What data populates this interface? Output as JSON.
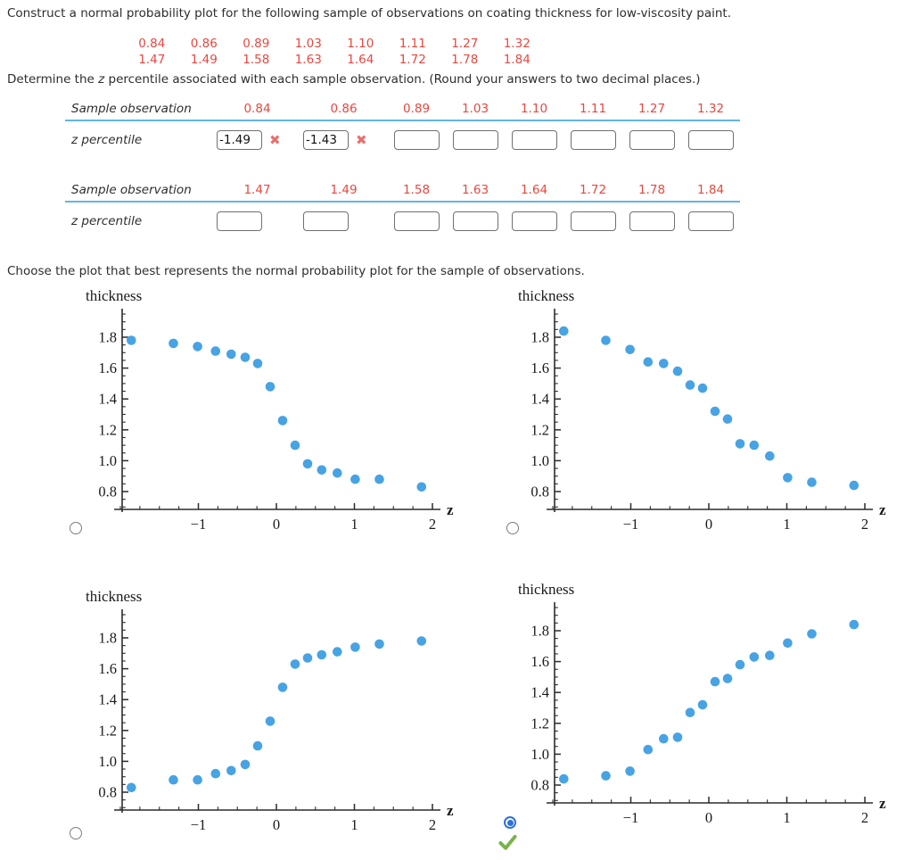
{
  "page": {
    "title_line": "Construct a normal probability plot for the following sample of observations on coating thickness for low-viscosity paint.",
    "determine_parts": [
      "Determine the ",
      "z",
      " percentile associated with each sample observation. (Round your answers to two decimal places.)"
    ],
    "choose_line": "Choose the plot that best represents the normal probability plot for the sample of observations."
  },
  "sample_values": [
    [
      "0.84",
      "0.86",
      "0.89",
      "1.03",
      "1.10",
      "1.11",
      "1.27",
      "1.32"
    ],
    [
      "1.47",
      "1.49",
      "1.58",
      "1.63",
      "1.64",
      "1.72",
      "1.78",
      "1.84"
    ]
  ],
  "tables": [
    {
      "row1_label": "Sample observation",
      "row2_label": "z percentile",
      "values": [
        "0.84",
        "0.86",
        "0.89",
        "1.03",
        "1.10",
        "1.11",
        "1.27",
        "1.32"
      ],
      "inputs": [
        {
          "value": "-1.49",
          "status": "incorrect"
        },
        {
          "value": "-1.43",
          "status": "incorrect"
        },
        {
          "value": "",
          "status": "empty"
        },
        {
          "value": "",
          "status": "empty"
        },
        {
          "value": "",
          "status": "empty"
        },
        {
          "value": "",
          "status": "empty"
        },
        {
          "value": "",
          "status": "empty"
        },
        {
          "value": "",
          "status": "empty"
        }
      ]
    },
    {
      "row1_label": "Sample observation",
      "row2_label": "z percentile",
      "values": [
        "1.47",
        "1.49",
        "1.58",
        "1.63",
        "1.64",
        "1.72",
        "1.78",
        "1.84"
      ],
      "inputs": [
        {
          "value": "",
          "status": "empty"
        },
        {
          "value": "",
          "status": "empty"
        },
        {
          "value": "",
          "status": "empty"
        },
        {
          "value": "",
          "status": "empty"
        },
        {
          "value": "",
          "status": "empty"
        },
        {
          "value": "",
          "status": "empty"
        },
        {
          "value": "",
          "status": "empty"
        },
        {
          "value": "",
          "status": "empty"
        }
      ]
    }
  ],
  "icons": {
    "incorrect_mark": "✖",
    "correct_mark": "check"
  },
  "plot_options": [
    {
      "plot": "a",
      "selected": false
    },
    {
      "plot": "b",
      "selected": false
    },
    {
      "plot": "c",
      "selected": false
    },
    {
      "plot": "d",
      "selected": true,
      "marked_correct": true
    }
  ],
  "colors": {
    "red_text": "#e8473f",
    "table_line_blue": "#62b5e6",
    "error_x": "#e87070",
    "point_blue": "#47a3e3",
    "radio_selected_blue": "#2e6fe2",
    "check_green": "#79b34a"
  },
  "chart_data": [
    {
      "type": "scatter",
      "name": "plot-a",
      "description": "decreasing S-shaped pattern",
      "ylabel": "thickness",
      "xlabel": "z",
      "x": [
        -1.86,
        -1.32,
        -1.01,
        -0.78,
        -0.58,
        -0.4,
        -0.24,
        -0.08,
        0.08,
        0.24,
        0.4,
        0.58,
        0.78,
        1.01,
        1.32,
        1.86
      ],
      "y": [
        1.78,
        1.76,
        1.74,
        1.71,
        1.69,
        1.67,
        1.63,
        1.48,
        1.26,
        1.1,
        0.98,
        0.94,
        0.92,
        0.88,
        0.88,
        0.83
      ],
      "x_ticks": [
        -1,
        0,
        1,
        2
      ],
      "y_ticks": [
        0.8,
        1.0,
        1.2,
        1.4,
        1.6,
        1.8
      ],
      "xlim": [
        -2.1,
        2.1
      ],
      "ylim": [
        0.67,
        1.97
      ],
      "grid": false,
      "selected": false
    },
    {
      "type": "scatter",
      "name": "plot-b",
      "description": "decreasing, roughly linear pattern",
      "ylabel": "thickness",
      "xlabel": "z",
      "x": [
        -1.86,
        -1.32,
        -1.01,
        -0.78,
        -0.58,
        -0.4,
        -0.24,
        -0.08,
        0.08,
        0.24,
        0.4,
        0.58,
        0.78,
        1.01,
        1.32,
        1.86
      ],
      "y": [
        1.84,
        1.78,
        1.72,
        1.64,
        1.63,
        1.58,
        1.49,
        1.47,
        1.32,
        1.27,
        1.11,
        1.1,
        1.03,
        0.89,
        0.86,
        0.84
      ],
      "x_ticks": [
        -1,
        0,
        1,
        2
      ],
      "y_ticks": [
        0.8,
        1.0,
        1.2,
        1.4,
        1.6,
        1.8
      ],
      "xlim": [
        -2.1,
        2.1
      ],
      "ylim": [
        0.67,
        1.97
      ],
      "grid": false,
      "selected": false
    },
    {
      "type": "scatter",
      "name": "plot-c",
      "description": "increasing S-shaped pattern",
      "ylabel": "thickness",
      "xlabel": "z",
      "x": [
        -1.86,
        -1.32,
        -1.01,
        -0.78,
        -0.58,
        -0.4,
        -0.24,
        -0.08,
        0.08,
        0.24,
        0.4,
        0.58,
        0.78,
        1.01,
        1.32,
        1.86
      ],
      "y": [
        0.83,
        0.88,
        0.88,
        0.92,
        0.94,
        0.98,
        1.1,
        1.26,
        1.48,
        1.63,
        1.67,
        1.69,
        1.71,
        1.74,
        1.76,
        1.78
      ],
      "x_ticks": [
        -1,
        0,
        1,
        2
      ],
      "y_ticks": [
        0.8,
        1.0,
        1.2,
        1.4,
        1.6,
        1.8
      ],
      "xlim": [
        -2.1,
        2.1
      ],
      "ylim": [
        0.67,
        1.97
      ],
      "grid": false,
      "selected": false
    },
    {
      "type": "scatter",
      "name": "plot-d",
      "description": "increasing, roughly linear pattern (selected answer, marked correct)",
      "ylabel": "thickness",
      "xlabel": "z",
      "x": [
        -1.86,
        -1.32,
        -1.01,
        -0.78,
        -0.58,
        -0.4,
        -0.24,
        -0.08,
        0.08,
        0.24,
        0.4,
        0.58,
        0.78,
        1.01,
        1.32,
        1.86
      ],
      "y": [
        0.84,
        0.86,
        0.89,
        1.03,
        1.1,
        1.11,
        1.27,
        1.32,
        1.47,
        1.49,
        1.58,
        1.63,
        1.64,
        1.72,
        1.78,
        1.84
      ],
      "x_ticks": [
        -1,
        0,
        1,
        2
      ],
      "y_ticks": [
        0.8,
        1.0,
        1.2,
        1.4,
        1.6,
        1.8
      ],
      "xlim": [
        -2.1,
        2.1
      ],
      "ylim": [
        0.67,
        1.97
      ],
      "grid": false,
      "selected": true,
      "marked_correct": true
    }
  ]
}
